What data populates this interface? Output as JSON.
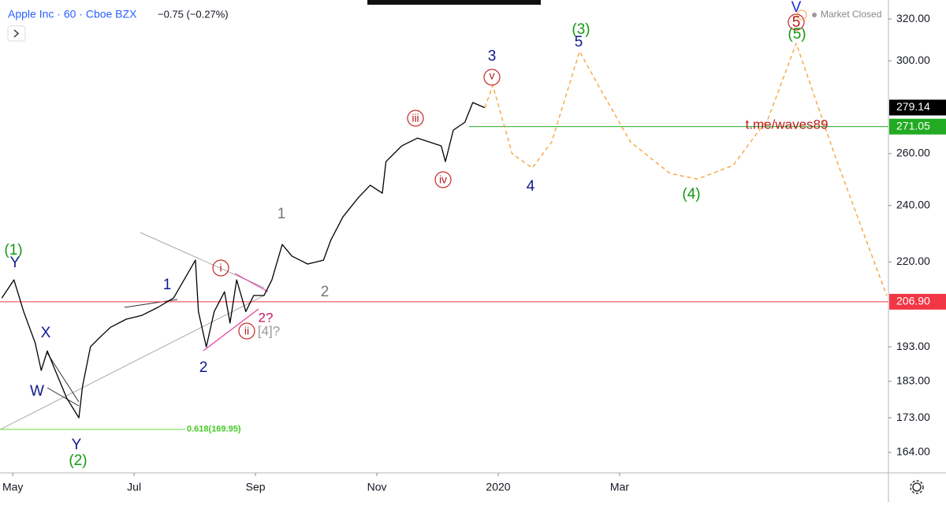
{
  "header": {
    "symbol": "Apple Inc · 60 · Cboe BZX",
    "change": "−0.75 (−0.27%)",
    "status": "Market Closed"
  },
  "chart_data": {
    "type": "line",
    "log_scale": true,
    "grid": false,
    "xlim": [
      4.79,
      19.43
    ],
    "xticks": [
      {
        "value": 5,
        "label": "May"
      },
      {
        "value": 7,
        "label": "Jul"
      },
      {
        "value": 9,
        "label": "Sep"
      },
      {
        "value": 11,
        "label": "Nov"
      },
      {
        "value": 13,
        "label": "2020"
      },
      {
        "value": 15,
        "label": "Mar"
      }
    ],
    "ylim": [
      158.9,
      329.5
    ],
    "yticks": [
      {
        "value": 164,
        "label": "164.00"
      },
      {
        "value": 173,
        "label": "173.00"
      },
      {
        "value": 183,
        "label": "183.00"
      },
      {
        "value": 193,
        "label": "193.00"
      },
      {
        "value": 220,
        "label": "220.00"
      },
      {
        "value": 240,
        "label": "240.00"
      },
      {
        "value": 260,
        "label": "260.00"
      },
      {
        "value": 300,
        "label": "300.00"
      },
      {
        "value": 320,
        "label": "320.00"
      }
    ],
    "series": [
      {
        "color": "#000000",
        "dashed": false,
        "x": [
          4.82,
          5.02,
          5.18,
          5.37,
          5.47,
          5.57,
          5.7,
          5.89,
          6.09,
          6.15,
          6.28,
          6.41,
          6.61,
          6.87,
          7.13,
          7.39,
          7.65,
          8.01,
          8.06,
          8.19,
          8.32,
          8.49,
          8.58,
          8.69,
          8.84,
          8.97,
          9.14,
          9.27,
          9.44,
          9.6,
          9.86,
          10.12,
          10.24,
          10.44,
          10.7,
          10.89,
          11.09,
          11.15,
          11.41,
          11.67,
          11.87,
          12.06,
          12.13,
          12.26,
          12.45,
          12.58,
          12.78
        ],
        "values": [
          208.1,
          214.0,
          203.8,
          194.2,
          186.1,
          191.8,
          186.1,
          178.3,
          173.0,
          181.6,
          193.0,
          195.4,
          198.9,
          201.4,
          202.6,
          205.1,
          208.1,
          220.6,
          203.8,
          193.0,
          203.8,
          210.1,
          200.2,
          214.0,
          203.8,
          208.9,
          208.9,
          214.0,
          226.0,
          222.0,
          219.3,
          220.6,
          227.4,
          235.8,
          243.1,
          247.6,
          244.6,
          256.8,
          263.1,
          266.3,
          264.7,
          263.1,
          256.8,
          269.6,
          272.9,
          281.3,
          279.1
        ]
      },
      {
        "color": "#f7a440",
        "dashed": true,
        "x": [
          12.78,
          12.91,
          13.23,
          13.56,
          13.88,
          14.34,
          14.66,
          15.18,
          15.83,
          16.28,
          16.87,
          17.45,
          17.91,
          18.56,
          19.4
        ],
        "values": [
          279.1,
          288.9,
          259.9,
          254.3,
          264.7,
          304.4,
          288.3,
          264.7,
          252.2,
          250.0,
          255.3,
          274.6,
          308.2,
          258.4,
          208.9
        ]
      }
    ],
    "levels": [
      {
        "value": 206.9,
        "label": "206.90",
        "color": "#f23645"
      },
      {
        "value": 271.05,
        "label": "271.05",
        "color": "#22ab22"
      },
      {
        "value": 169.95,
        "label": "0.618(169.95)",
        "color": "#66dd44"
      }
    ],
    "last_price": {
      "value": 279.14,
      "label": "279.14",
      "color": "#000000"
    },
    "annotations": [
      "(1)",
      "Y",
      "X",
      "W",
      "Y",
      "(2)",
      "1",
      "2",
      "i",
      "ii",
      "2?",
      "[4]?",
      "1",
      "2",
      "iii",
      "iv",
      "3",
      "v",
      "4",
      "(3)",
      "5",
      "(4)",
      "t.me/waves89",
      "V",
      "5",
      "(5)"
    ]
  }
}
